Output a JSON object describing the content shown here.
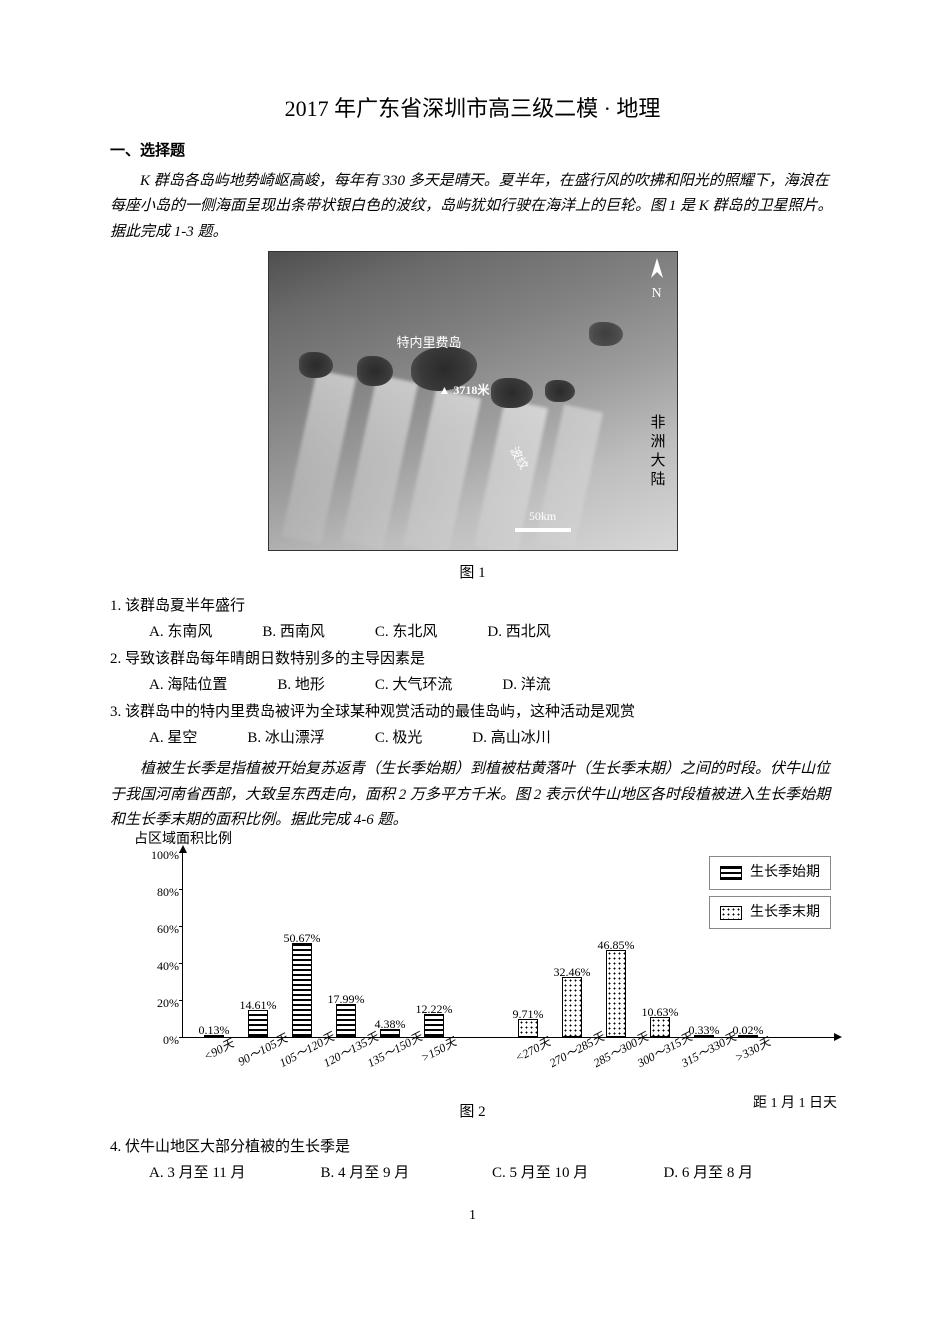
{
  "title": "2017 年广东省深圳市高三级二模 · 地理",
  "section1": "一、选择题",
  "passageA": "K 群岛各岛屿地势崎岖高峻，每年有 330 多天是晴天。夏半年，在盛行风的吹拂和阳光的照耀下，海浪在每座小岛的一侧海面呈现出条带状银白色的波纹，岛屿犹如行驶在海洋上的巨轮。图 1 是 K 群岛的卫星照片。据此完成 1-3 题。",
  "figure1": {
    "caption": "图 1",
    "north_label": "N",
    "main_island_label": "特内里费岛",
    "altitude_label": "3718米",
    "wave_label": "波纹",
    "scale_label": "50km",
    "mainland_label": "非洲大陆",
    "island_color": "#2a2a2a",
    "sea_gradient_start": "#4f4f4f",
    "sea_gradient_end": "#d8d8d8"
  },
  "q1": {
    "stem": "1. 该群岛夏半年盛行",
    "opts": {
      "A": "A. 东南风",
      "B": "B. 西南风",
      "C": "C. 东北风",
      "D": "D. 西北风"
    }
  },
  "q2": {
    "stem": "2. 导致该群岛每年晴朗日数特别多的主导因素是",
    "opts": {
      "A": "A. 海陆位置",
      "B": "B. 地形",
      "C": "C. 大气环流",
      "D": "D. 洋流"
    }
  },
  "q3": {
    "stem": "3. 该群岛中的特内里费岛被评为全球某种观赏活动的最佳岛屿，这种活动是观赏",
    "opts": {
      "A": "A. 星空",
      "B": "B. 冰山漂浮",
      "C": "C. 极光",
      "D": "D. 高山冰川"
    }
  },
  "passageB": "植被生长季是指植被开始复苏返青（生长季始期）到植被枯黄落叶（生长季末期）之间的时段。伏牛山位于我国河南省西部，大致呈东西走向，面积 2 万多平方千米。图 2 表示伏牛山地区各时段植被进入生长季始期和生长季末期的面积比例。据此完成 4-6 题。",
  "chart": {
    "y_axis_title": "占区域面积比例",
    "x_axis_title": "距 1 月 1 日天",
    "yticks": [
      "0%",
      "20%",
      "40%",
      "60%",
      "80%",
      "100%"
    ],
    "ymax_pct": 100,
    "legend_start": "生长季始期",
    "legend_end": "生长季末期",
    "caption": "图 2",
    "bar_outline": "#000000",
    "start_series": [
      {
        "cat": "<90天",
        "val": 0.13,
        "label": "0.13%"
      },
      {
        "cat": "90～105天",
        "val": 14.61,
        "label": "14.61%"
      },
      {
        "cat": "105～120天",
        "val": 50.67,
        "label": "50.67%"
      },
      {
        "cat": "120～135天",
        "val": 17.99,
        "label": "17.99%"
      },
      {
        "cat": "135～150天",
        "val": 4.38,
        "label": "4.38%"
      },
      {
        "cat": ">150天",
        "val": 12.22,
        "label": "12.22%"
      }
    ],
    "end_series": [
      {
        "cat": "<270天",
        "val": 9.71,
        "label": "9.71%"
      },
      {
        "cat": "270～285天",
        "val": 32.46,
        "label": "32.46%"
      },
      {
        "cat": "285～300天",
        "val": 46.85,
        "label": "46.85%"
      },
      {
        "cat": "300～315天",
        "val": 10.63,
        "label": "10.63%"
      },
      {
        "cat": "315～330天",
        "val": 0.33,
        "label": "0.33%"
      },
      {
        "cat": ">330天",
        "val": 0.02,
        "label": "0.02%"
      }
    ]
  },
  "q4": {
    "stem": "4. 伏牛山地区大部分植被的生长季是",
    "opts": {
      "A": "A. 3 月至 11 月",
      "B": "B. 4 月至 9 月",
      "C": "C. 5 月至 10 月",
      "D": "D. 6 月至 8 月"
    }
  },
  "page_number": "1"
}
